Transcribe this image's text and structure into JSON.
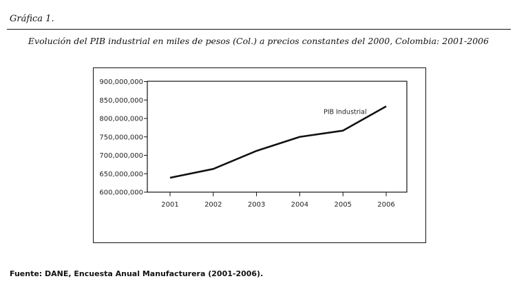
{
  "header": {
    "figure_label": "Gráfica 1.",
    "title": "Evolución del PIB industrial en miles de pesos (Col.) a precios constantes del 2000, Colombia: 2001-2006"
  },
  "footer": {
    "source": "Fuente: DANE, Encuesta Anual Manufacturera (2001-2006)."
  },
  "chart_data": {
    "type": "line",
    "title": "Evolución del PIB industrial en miles de pesos (Col.) a precios constantes del 2000, Colombia: 2001-2006",
    "xlabel": "",
    "ylabel": "",
    "categories": [
      "2001",
      "2002",
      "2003",
      "2004",
      "2005",
      "2006"
    ],
    "series": [
      {
        "name": "PIB Industrial",
        "values": [
          639000000,
          663000000,
          712000000,
          750000000,
          767000000,
          833000000
        ]
      }
    ],
    "ylim": [
      600000000,
      900000000
    ],
    "yticks": [
      600000000,
      650000000,
      700000000,
      750000000,
      800000000,
      850000000,
      900000000
    ],
    "ytick_labels": [
      "600,000,000",
      "650,000,000",
      "700,000,000",
      "750,000,000",
      "800,000,000",
      "850,000,000",
      "900,000,000"
    ],
    "grid": false,
    "legend": "inline label near end of line (top-right)",
    "line_color": "#111111"
  }
}
